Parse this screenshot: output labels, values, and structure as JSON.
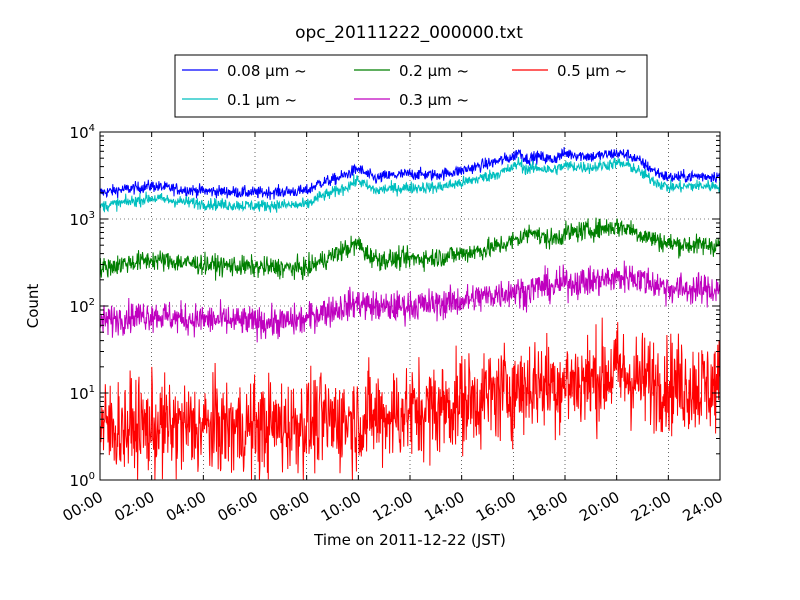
{
  "chart_data": {
    "type": "line",
    "title": "opc_20111222_000000.txt",
    "xlabel": "Time on 2011-12-22 (JST)",
    "ylabel": "Count",
    "y_scale": "log",
    "ylim": [
      1,
      10000
    ],
    "xlim": [
      "00:00",
      "24:00"
    ],
    "x_unit": "hours",
    "x_ticks": [
      "00:00",
      "02:00",
      "04:00",
      "06:00",
      "08:00",
      "10:00",
      "12:00",
      "14:00",
      "16:00",
      "18:00",
      "20:00",
      "22:00",
      "24:00"
    ],
    "y_ticks": [
      {
        "value": 1,
        "base": "10",
        "exp": "0"
      },
      {
        "value": 10,
        "base": "10",
        "exp": "1"
      },
      {
        "value": 100,
        "base": "10",
        "exp": "2"
      },
      {
        "value": 1000,
        "base": "10",
        "exp": "3"
      },
      {
        "value": 10000,
        "base": "10",
        "exp": "4"
      }
    ],
    "grid": true,
    "legend_placement": "top-center, outside plot",
    "series": [
      {
        "name": "0.08 μm ~",
        "color": "#0000ff",
        "noise": 0.035,
        "x": [
          0,
          1,
          2,
          3,
          4,
          5,
          6,
          7,
          8,
          8.5,
          9,
          9.5,
          10,
          10.3,
          10.7,
          11,
          12,
          13,
          14,
          15,
          15.5,
          16,
          16.2,
          16.5,
          17,
          17.5,
          18,
          19,
          20,
          20.5,
          21,
          21.5,
          22,
          23,
          24
        ],
        "y": [
          2000,
          2200,
          2400,
          2200,
          2100,
          2050,
          2000,
          2050,
          2100,
          2600,
          2800,
          3200,
          3800,
          3300,
          2900,
          3100,
          3300,
          3200,
          3600,
          4300,
          4700,
          5200,
          6000,
          4900,
          5200,
          4800,
          5700,
          5200,
          5700,
          5400,
          4400,
          3500,
          3000,
          3100,
          3100
        ]
      },
      {
        "name": "0.1 μm ~",
        "color": "#00bfbf",
        "noise": 0.035,
        "x": [
          0,
          1,
          2,
          3,
          4,
          5,
          6,
          7,
          8,
          8.5,
          9,
          9.5,
          10,
          10.3,
          10.7,
          11,
          12,
          13,
          14,
          15,
          15.5,
          16,
          16.2,
          16.5,
          17,
          17.5,
          18,
          19,
          20,
          20.5,
          21,
          21.5,
          22,
          23,
          24
        ],
        "y": [
          1400,
          1550,
          1750,
          1600,
          1500,
          1450,
          1420,
          1440,
          1450,
          1800,
          2000,
          2300,
          2800,
          2400,
          2100,
          2200,
          2300,
          2300,
          2600,
          3100,
          3400,
          3900,
          4500,
          3700,
          3900,
          3600,
          4100,
          3900,
          4400,
          4100,
          3300,
          2700,
          2300,
          2400,
          2400
        ]
      },
      {
        "name": "0.2 μm ~",
        "color": "#007f00",
        "noise": 0.06,
        "x": [
          0,
          1,
          2,
          3,
          4,
          5,
          6,
          7,
          8,
          8.5,
          9,
          9.5,
          10,
          10.3,
          10.7,
          11,
          12,
          13,
          14,
          15,
          15.5,
          16,
          16.5,
          16.8,
          17,
          17.5,
          18,
          19,
          20,
          20.5,
          21,
          22,
          23,
          24
        ],
        "y": [
          270,
          310,
          340,
          320,
          300,
          290,
          280,
          275,
          270,
          320,
          380,
          450,
          520,
          400,
          350,
          340,
          350,
          360,
          400,
          450,
          500,
          560,
          650,
          780,
          620,
          580,
          680,
          750,
          820,
          780,
          650,
          520,
          500,
          500
        ]
      },
      {
        "name": "0.3 μm ~",
        "color": "#bf00bf",
        "noise": 0.09,
        "x": [
          0,
          1,
          2,
          3,
          4,
          5,
          6,
          7,
          8,
          8.5,
          9,
          9.5,
          10,
          10.5,
          11,
          12,
          13,
          14,
          15,
          15.5,
          16,
          16.5,
          17,
          17.5,
          18,
          19,
          20,
          20.5,
          21,
          22,
          23,
          24
        ],
        "y": [
          65,
          75,
          80,
          72,
          70,
          68,
          65,
          65,
          70,
          85,
          90,
          100,
          110,
          100,
          95,
          100,
          105,
          115,
          130,
          140,
          150,
          145,
          170,
          165,
          185,
          190,
          210,
          220,
          200,
          160,
          155,
          155
        ]
      },
      {
        "name": "0.5 μm ~",
        "color": "#ff0000",
        "noise": 0.28,
        "x": [
          0,
          2,
          4,
          6,
          8,
          10,
          11,
          12,
          13,
          14,
          14.5,
          15,
          15.5,
          16,
          16.5,
          17,
          18,
          19,
          19.5,
          20,
          20.5,
          21,
          22,
          23,
          24
        ],
        "y": [
          4,
          4,
          4,
          4,
          4.5,
          5,
          5.5,
          6,
          6.5,
          8,
          8.5,
          9,
          10,
          11,
          12,
          13,
          13,
          14,
          16,
          18,
          15,
          14,
          13,
          12,
          12
        ]
      }
    ]
  }
}
